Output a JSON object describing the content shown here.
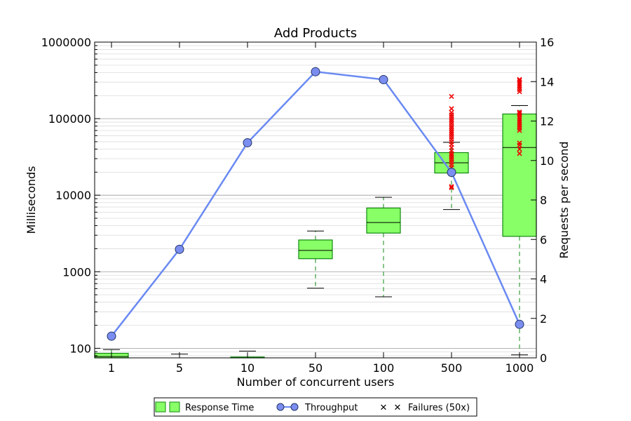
{
  "chart_data": {
    "type": "box-line",
    "title": "Add Products",
    "xlabel": "Number of concurrent users",
    "ylabel_left": "Milliseconds",
    "ylabel_right": "Requests per second",
    "categories": [
      "1",
      "5",
      "10",
      "50",
      "100",
      "500",
      "1000"
    ],
    "y_left": {
      "scale": "log",
      "range": [
        75,
        1000000
      ],
      "ticks": [
        100,
        1000,
        10000,
        100000,
        1000000
      ],
      "tick_labels": [
        "100",
        "1000",
        "10000",
        "100000",
        "1000000"
      ]
    },
    "y_right": {
      "scale": "linear",
      "range": [
        0,
        16
      ],
      "ticks": [
        0,
        2,
        4,
        6,
        8,
        10,
        12,
        14,
        16
      ],
      "tick_labels": [
        "0",
        "2",
        "4",
        "6",
        "8",
        "10",
        "12",
        "14",
        "16"
      ]
    },
    "grid": true,
    "legend_position": "bottom-center",
    "colors": {
      "box_fill": "#88ff66",
      "box_edge": "#118811",
      "whisker": "#118811",
      "cap": "#000000",
      "line": "#6a8af2",
      "marker_fill": "#7b8ef0",
      "marker_edge": "#223366",
      "failure": "#ee0000"
    },
    "response_time": [
      {
        "category": "1",
        "q1": 68,
        "median": 78,
        "q3": 86,
        "whisker_low": 55,
        "whisker_high": 96
      },
      {
        "category": "5",
        "q1": 62,
        "median": 68,
        "q3": 74,
        "whisker_low": 55,
        "whisker_high": 84
      },
      {
        "category": "10",
        "q1": 62,
        "median": 70,
        "q3": 77,
        "whisker_low": 55,
        "whisker_high": 92
      },
      {
        "category": "50",
        "q1": 1480,
        "median": 1900,
        "q3": 2600,
        "whisker_low": 610,
        "whisker_high": 3400
      },
      {
        "category": "100",
        "q1": 3200,
        "median": 4400,
        "q3": 6800,
        "whisker_low": 470,
        "whisker_high": 9400
      },
      {
        "category": "500",
        "q1": 19500,
        "median": 26500,
        "q3": 36000,
        "whisker_low": 6500,
        "whisker_high": 49000
      },
      {
        "category": "1000",
        "q1": 2900,
        "median": 42000,
        "q3": 115000,
        "whisker_low": 82,
        "whisker_high": 148000
      }
    ],
    "throughput": [
      {
        "category": "1",
        "value": 1.1
      },
      {
        "category": "5",
        "value": 5.5
      },
      {
        "category": "10",
        "value": 10.9
      },
      {
        "category": "50",
        "value": 14.5
      },
      {
        "category": "100",
        "value": 14.1
      },
      {
        "category": "500",
        "value": 9.4
      },
      {
        "category": "1000",
        "value": 1.7
      }
    ],
    "failures": [
      {
        "category": "500",
        "values": [
          12500,
          13000,
          21000,
          23000,
          25000,
          27000,
          29000,
          31000,
          33000,
          35000,
          38000,
          42000,
          46000,
          50000,
          54000,
          58000,
          62000,
          66000,
          70000,
          75000,
          80000,
          86000,
          92000,
          98000,
          105000,
          112000,
          120000,
          135000,
          195000
        ]
      },
      {
        "category": "1000",
        "values": [
          35000,
          40000,
          45000,
          48000,
          70000,
          75000,
          80000,
          85000,
          90000,
          95000,
          100000,
          105000,
          112000,
          118000,
          122000,
          225000,
          240000,
          255000,
          270000,
          285000,
          300000,
          315000,
          325000
        ]
      }
    ],
    "legend": [
      {
        "key": "box",
        "label": "Response Time"
      },
      {
        "key": "line",
        "label": "Throughput"
      },
      {
        "key": "failure",
        "label": "Failures (50x)"
      }
    ]
  }
}
